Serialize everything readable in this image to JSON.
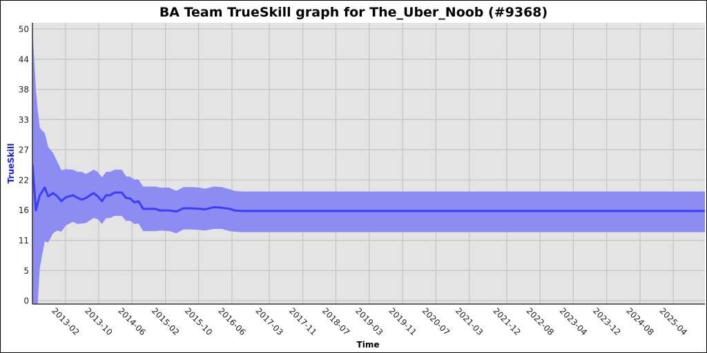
{
  "chart_data": {
    "type": "area",
    "title": "BA Team TrueSkill graph for The_Uber_Noob (#9368)",
    "xlabel": "Time",
    "ylabel": "TrueSkill",
    "xlim": [
      "2012-06-04",
      "2025-11-18"
    ],
    "ylim": [
      -0.63,
      51.15
    ],
    "grid": true,
    "legend": "none",
    "x_ticks": [
      "2013-02",
      "2013-10",
      "2014-06",
      "2015-02",
      "2015-10",
      "2016-06",
      "2017-03",
      "2017-11",
      "2018-07",
      "2019-03",
      "2019-11",
      "2020-07",
      "2021-03",
      "2021-12",
      "2022-08",
      "2023-04",
      "2023-12",
      "2024-08",
      "2025-04"
    ],
    "y_ticks": [
      {
        "value": 0,
        "label": "0"
      },
      {
        "value": 5.556,
        "label": "5"
      },
      {
        "value": 11.111,
        "label": "11"
      },
      {
        "value": 16.667,
        "label": "16"
      },
      {
        "value": 22.222,
        "label": "22"
      },
      {
        "value": 27.778,
        "label": "27"
      },
      {
        "value": 33.333,
        "label": "33"
      },
      {
        "value": 38.889,
        "label": "38"
      },
      {
        "value": 44.444,
        "label": "44"
      },
      {
        "value": 50,
        "label": "50"
      }
    ],
    "colors": {
      "background": "#e4e4e4",
      "band": "#8c8cf2",
      "line": "#3c3cff",
      "grid": "#c4c4c4",
      "ylabel": "#1a1aff"
    },
    "points": [
      {
        "date": "2012-06-04",
        "mean": 25.1,
        "upper": 50.0,
        "lower": -1.0
      },
      {
        "date": "2012-06-29",
        "mean": 16.6,
        "upper": 38.8,
        "lower": -5.0
      },
      {
        "date": "2012-07-13",
        "mean": 18.0,
        "upper": 35.0,
        "lower": -0.5
      },
      {
        "date": "2012-07-28",
        "mean": 19.4,
        "upper": 31.8,
        "lower": 6.1
      },
      {
        "date": "2012-09-02",
        "mean": 20.8,
        "upper": 30.8,
        "lower": 10.9
      },
      {
        "date": "2012-09-27",
        "mean": 19.2,
        "upper": 28.3,
        "lower": 10.7
      },
      {
        "date": "2012-11-02",
        "mean": 19.8,
        "upper": 27.2,
        "lower": 12.4
      },
      {
        "date": "2012-12-02",
        "mean": 19.2,
        "upper": 25.6,
        "lower": 12.9
      },
      {
        "date": "2013-01-02",
        "mean": 18.3,
        "upper": 24.0,
        "lower": 12.7
      },
      {
        "date": "2013-02-01",
        "mean": 19.0,
        "upper": 24.2,
        "lower": 13.8
      },
      {
        "date": "2013-03-26",
        "mean": 19.4,
        "upper": 24.1,
        "lower": 14.5
      },
      {
        "date": "2013-04-30",
        "mean": 18.9,
        "upper": 23.7,
        "lower": 14.1
      },
      {
        "date": "2013-05-31",
        "mean": 18.6,
        "upper": 23.7,
        "lower": 14.2
      },
      {
        "date": "2013-06-30",
        "mean": 18.9,
        "upper": 23.3,
        "lower": 14.3
      },
      {
        "date": "2013-08-25",
        "mean": 19.8,
        "upper": 24.1,
        "lower": 15.2
      },
      {
        "date": "2013-09-24",
        "mean": 19.2,
        "upper": 23.7,
        "lower": 15.0
      },
      {
        "date": "2013-10-25",
        "mean": 18.3,
        "upper": 22.7,
        "lower": 14.1
      },
      {
        "date": "2013-11-24",
        "mean": 19.4,
        "upper": 23.7,
        "lower": 15.2
      },
      {
        "date": "2013-12-24",
        "mean": 19.4,
        "upper": 23.7,
        "lower": 15.2
      },
      {
        "date": "2014-01-24",
        "mean": 19.9,
        "upper": 24.1,
        "lower": 15.6
      },
      {
        "date": "2014-03-19",
        "mean": 19.9,
        "upper": 24.1,
        "lower": 15.6
      },
      {
        "date": "2014-04-19",
        "mean": 18.9,
        "upper": 22.9,
        "lower": 14.7
      },
      {
        "date": "2014-05-19",
        "mean": 18.8,
        "upper": 22.8,
        "lower": 14.7
      },
      {
        "date": "2014-06-19",
        "mean": 18.1,
        "upper": 22.3,
        "lower": 14.1
      },
      {
        "date": "2014-07-19",
        "mean": 18.3,
        "upper": 22.3,
        "lower": 14.2
      },
      {
        "date": "2014-08-22",
        "mean": 16.9,
        "upper": 21.0,
        "lower": 12.8
      },
      {
        "date": "2014-11-19",
        "mean": 16.9,
        "upper": 21.0,
        "lower": 12.8
      },
      {
        "date": "2014-12-22",
        "mean": 16.6,
        "upper": 20.8,
        "lower": 12.9
      },
      {
        "date": "2015-02-28",
        "mean": 16.6,
        "upper": 20.8,
        "lower": 12.8
      },
      {
        "date": "2015-04-22",
        "mean": 16.4,
        "upper": 20.2,
        "lower": 12.4
      },
      {
        "date": "2015-06-12",
        "mean": 17.0,
        "upper": 20.9,
        "lower": 13.1
      },
      {
        "date": "2015-08-07",
        "mean": 17.0,
        "upper": 20.9,
        "lower": 13.1
      },
      {
        "date": "2015-10-10",
        "mean": 16.9,
        "upper": 20.8,
        "lower": 13.0
      },
      {
        "date": "2015-11-16",
        "mean": 16.8,
        "upper": 20.6,
        "lower": 12.9
      },
      {
        "date": "2016-01-22",
        "mean": 17.2,
        "upper": 21.0,
        "lower": 13.2
      },
      {
        "date": "2016-03-20",
        "mean": 17.1,
        "upper": 20.9,
        "lower": 13.2
      },
      {
        "date": "2016-05-16",
        "mean": 16.9,
        "upper": 20.5,
        "lower": 12.8
      },
      {
        "date": "2016-06-19",
        "mean": 16.6,
        "upper": 20.2,
        "lower": 12.7
      },
      {
        "date": "2016-08-10",
        "mean": 16.5,
        "upper": 20.1,
        "lower": 12.6
      },
      {
        "date": "2025-11-18",
        "mean": 16.5,
        "upper": 20.1,
        "lower": 12.6
      }
    ]
  }
}
